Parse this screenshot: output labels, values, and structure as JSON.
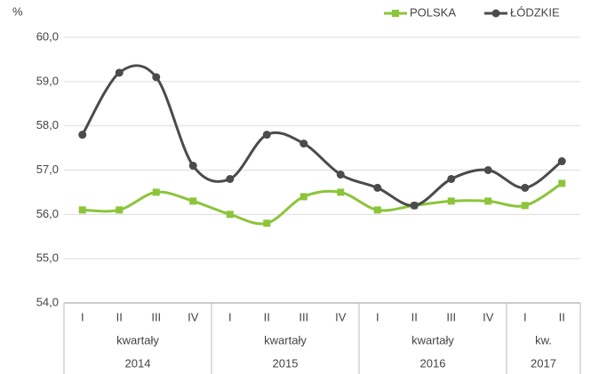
{
  "chart_data": {
    "type": "line",
    "y_label": "%",
    "groups": [
      {
        "label": "kwartały",
        "year": "2014",
        "categories": [
          "I",
          "II",
          "III",
          "IV"
        ]
      },
      {
        "label": "kwartały",
        "year": "2015",
        "categories": [
          "I",
          "II",
          "III",
          "IV"
        ]
      },
      {
        "label": "kwartały",
        "year": "2016",
        "categories": [
          "I",
          "II",
          "III",
          "IV"
        ]
      },
      {
        "label": "kw.",
        "year": "2017",
        "categories": [
          "I",
          "II"
        ]
      }
    ],
    "series": [
      {
        "name": "POLSKA",
        "color": "#8cc43c",
        "marker": "square",
        "values": [
          56.1,
          56.1,
          56.5,
          56.3,
          56.0,
          55.8,
          56.4,
          56.5,
          56.1,
          56.2,
          56.3,
          56.3,
          56.2,
          56.7
        ]
      },
      {
        "name": "ŁÓDZKIE",
        "color": "#4b4b4d",
        "marker": "circle",
        "values": [
          57.8,
          59.2,
          59.1,
          57.1,
          56.8,
          57.8,
          57.6,
          56.9,
          56.6,
          56.2,
          56.8,
          57.0,
          56.6,
          57.2
        ]
      }
    ],
    "ylim": [
      54,
      60
    ],
    "yticks": [
      {
        "value": 54,
        "label": "54,0"
      },
      {
        "value": 55,
        "label": "55,0"
      },
      {
        "value": 56,
        "label": "56,0"
      },
      {
        "value": 57,
        "label": "57,0"
      },
      {
        "value": 58,
        "label": "58,0"
      },
      {
        "value": 59,
        "label": "59,0"
      },
      {
        "value": 60,
        "label": "60,0"
      }
    ],
    "grid": true,
    "legend": "top-right",
    "smooth": true
  }
}
